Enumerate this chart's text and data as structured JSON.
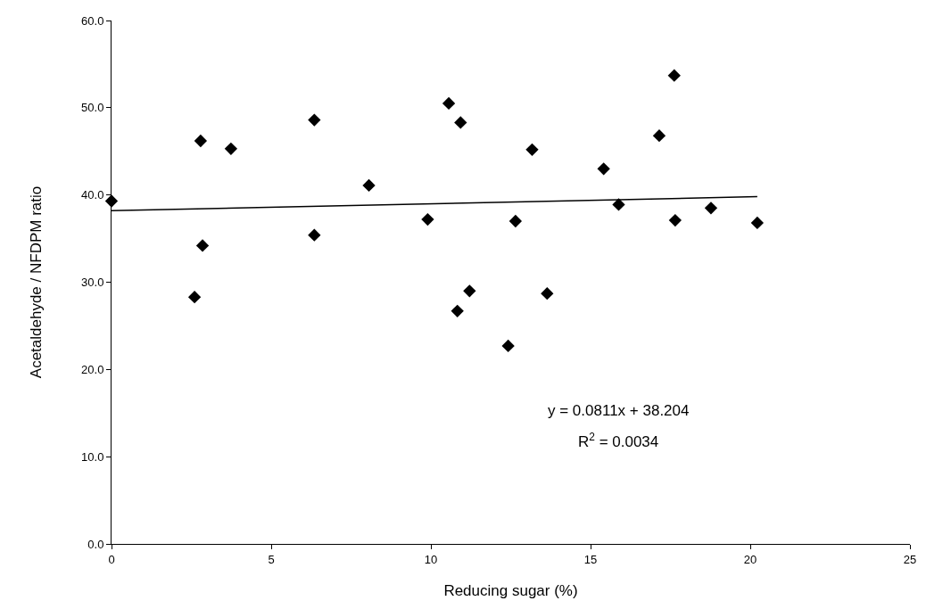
{
  "chart_data": {
    "type": "scatter",
    "xlabel": "Reducing sugar (%)",
    "ylabel": "Acetaldehyde / NFDPM ratio",
    "xlim": [
      0,
      25
    ],
    "xticks": [
      0,
      5,
      10,
      15,
      20,
      25
    ],
    "ylim": [
      0,
      60
    ],
    "yticks": [
      {
        "value": 0,
        "label": "0.0"
      },
      {
        "value": 10,
        "label": "10.0"
      },
      {
        "value": 20,
        "label": "20.0"
      },
      {
        "value": 30,
        "label": "30.0"
      },
      {
        "value": 40,
        "label": "40.0"
      },
      {
        "value": 50,
        "label": "50.0"
      },
      {
        "value": 60,
        "label": "60.0"
      }
    ],
    "grid": false,
    "marker": "diamond",
    "series": [
      {
        "color": "#000000",
        "x": [
          0,
          2.6,
          2.79,
          2.85,
          3.74,
          6.35,
          6.35,
          8.06,
          9.9,
          10.56,
          10.83,
          10.93,
          11.21,
          12.42,
          12.65,
          13.17,
          13.64,
          15.41,
          15.88,
          17.15,
          17.62,
          17.65,
          18.77,
          20.22
        ],
        "values": [
          39.3,
          28.3,
          46.2,
          34.2,
          45.3,
          48.6,
          35.4,
          41.1,
          37.2,
          50.5,
          26.7,
          48.3,
          29.0,
          22.7,
          37.0,
          45.2,
          28.7,
          43.0,
          38.9,
          46.8,
          53.7,
          37.1,
          38.5,
          36.8
        ]
      },
      {
        "type": "line",
        "color": "#000000",
        "marker": "none",
        "line_style": "solid",
        "x": [
          0,
          20.22
        ],
        "values": [
          38.2,
          39.8
        ]
      }
    ],
    "annotations": [
      "y = 0.0811x + 38.204",
      "R$^{2}$ = 0.0034"
    ]
  }
}
